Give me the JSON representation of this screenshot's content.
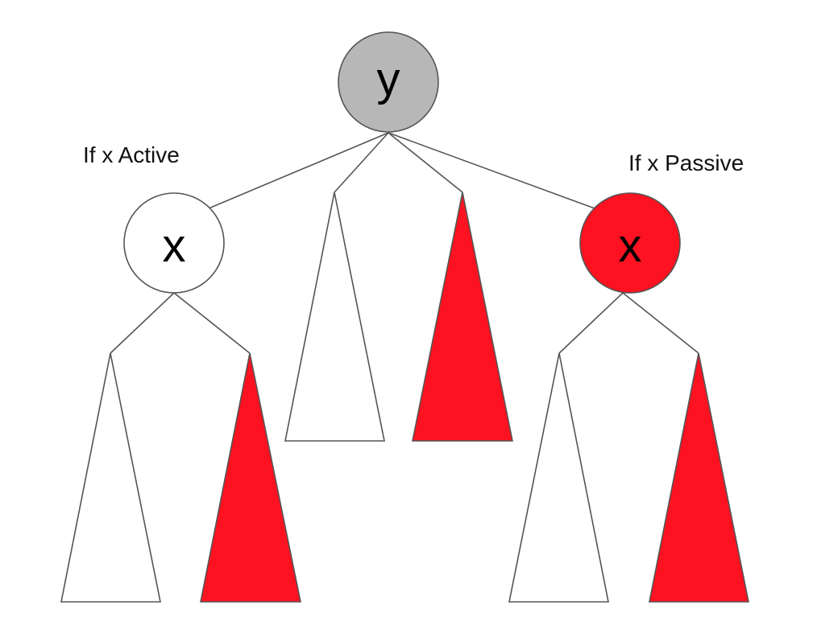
{
  "colors": {
    "root_fill": "#b7b7b7",
    "active_fill": "#ffffff",
    "passive_fill": "#fc1220",
    "subtree_white": "#ffffff",
    "subtree_red": "#fc1220",
    "stroke": "#555555"
  },
  "nodes": {
    "root": {
      "label": "y"
    },
    "left": {
      "label": "x"
    },
    "right": {
      "label": "x"
    }
  },
  "annotations": {
    "left_caption": "If x Active",
    "right_caption": "If x Passive"
  },
  "subtrees": {
    "root_left_color": "white",
    "root_right_color": "red",
    "left_left_color": "white",
    "left_right_color": "red",
    "right_left_color": "white",
    "right_right_color": "red"
  }
}
